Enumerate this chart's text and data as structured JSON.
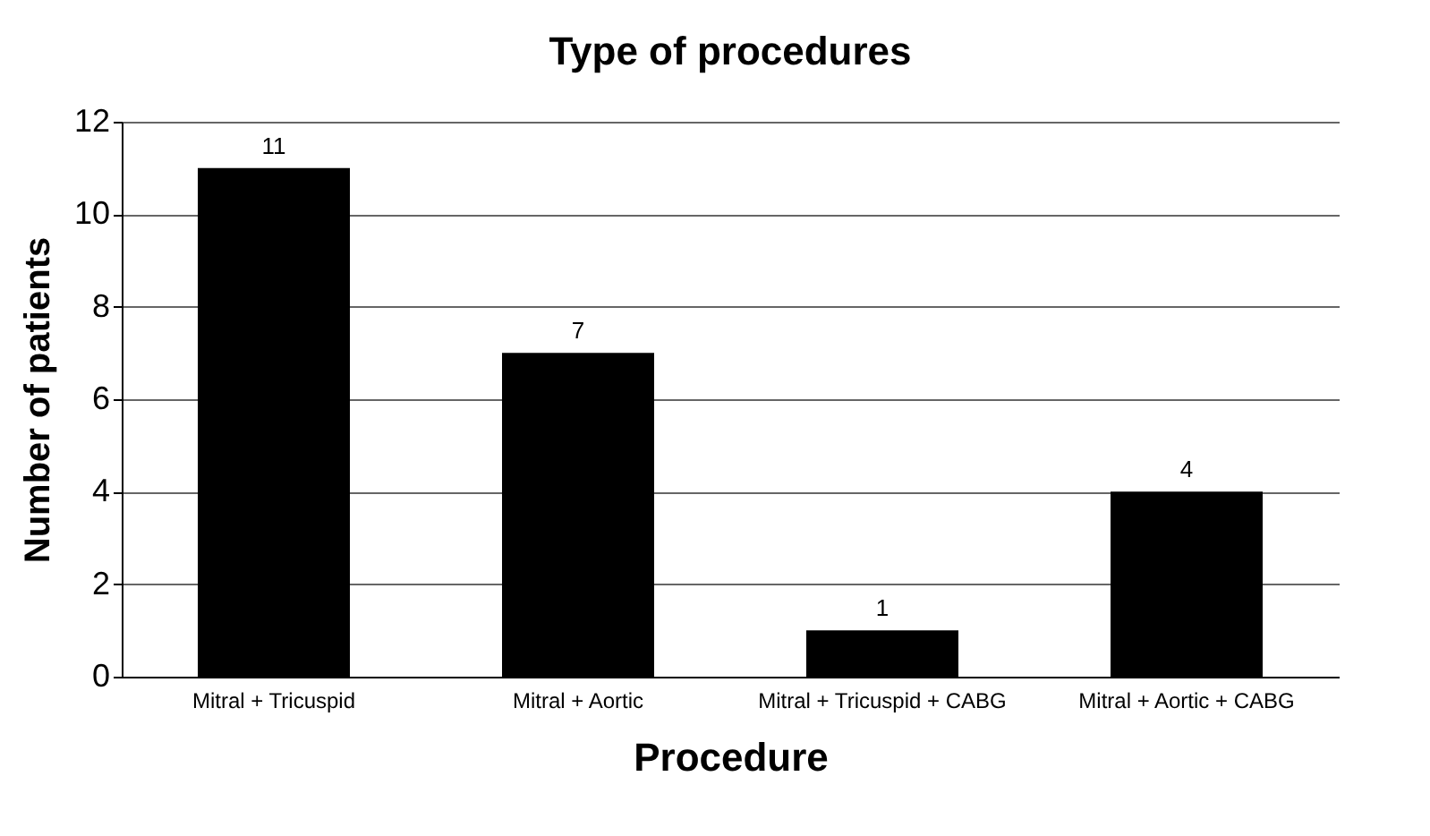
{
  "chart_data": {
    "type": "bar",
    "title": "Type of procedures",
    "xlabel": "Procedure",
    "ylabel": "Number of patients",
    "categories": [
      "Mitral + Tricuspid",
      "Mitral + Aortic",
      "Mitral + Tricuspid + CABG",
      "Mitral + Aortic + CABG"
    ],
    "values": [
      11,
      7,
      1,
      4
    ],
    "color": "#000000",
    "ylim": [
      0,
      12
    ],
    "yticks": [
      0,
      2,
      4,
      6,
      8,
      10,
      12
    ],
    "grid": "y",
    "data_labels": true
  }
}
